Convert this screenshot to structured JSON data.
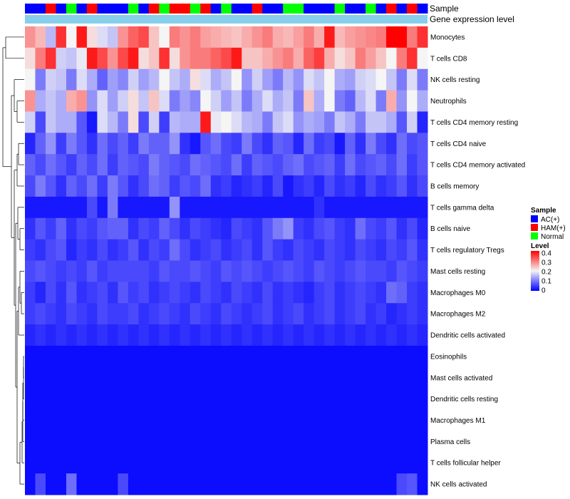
{
  "chart_data": {
    "type": "heatmap",
    "title": "",
    "annotations": {
      "sample_label": "Sample",
      "expression_label": "Gene expression level"
    },
    "sample_groups": [
      "AC(+)",
      "AC(+)",
      "HAM(+)",
      "AC(+)",
      "Normal",
      "AC(+)",
      "HAM(+)",
      "AC(+)",
      "AC(+)",
      "AC(+)",
      "Normal",
      "AC(+)",
      "HAM(+)",
      "Normal",
      "HAM(+)",
      "HAM(+)",
      "Normal",
      "HAM(+)",
      "AC(+)",
      "Normal",
      "AC(+)",
      "AC(+)",
      "HAM(+)",
      "AC(+)",
      "AC(+)",
      "Normal",
      "Normal",
      "AC(+)",
      "AC(+)",
      "AC(+)",
      "Normal",
      "AC(+)",
      "AC(+)",
      "Normal",
      "AC(+)",
      "HAM(+)",
      "AC(+)",
      "HAM(+)",
      "AC(+)"
    ],
    "rows": [
      "Monocytes",
      "T cells CD8",
      "NK cells resting",
      "Neutrophils",
      "T cells CD4 memory resting",
      "T cells CD4 naive",
      "T cells CD4 memory activated",
      "B cells memory",
      "T cells gamma delta",
      "B cells naive",
      "T cells regulatory  Tregs",
      "Mast cells resting",
      "Macrophages M0",
      "Macrophages M2",
      "Dendritic cells activated",
      "Eosinophils",
      "Mast cells activated",
      "Dendritic cells resting",
      "Macrophages M1",
      "Plasma cells",
      "T cells follicular helper",
      "NK cells activated"
    ],
    "values": [
      [
        0.28,
        0.25,
        0.15,
        0.36,
        0.2,
        0.38,
        0.22,
        0.18,
        0.16,
        0.28,
        0.32,
        0.34,
        0.24,
        0.2,
        0.3,
        0.28,
        0.3,
        0.27,
        0.26,
        0.25,
        0.24,
        0.26,
        0.28,
        0.3,
        0.26,
        0.25,
        0.27,
        0.3,
        0.26,
        0.38,
        0.25,
        0.27,
        0.28,
        0.29,
        0.3,
        0.4,
        0.4,
        0.3,
        0.36
      ],
      [
        0.22,
        0.3,
        0.36,
        0.17,
        0.16,
        0.19,
        0.38,
        0.34,
        0.28,
        0.34,
        0.38,
        0.22,
        0.24,
        0.36,
        0.22,
        0.28,
        0.3,
        0.3,
        0.32,
        0.34,
        0.38,
        0.24,
        0.24,
        0.26,
        0.28,
        0.3,
        0.26,
        0.32,
        0.35,
        0.26,
        0.22,
        0.24,
        0.3,
        0.27,
        0.24,
        0.2,
        0.3,
        0.36,
        0.2
      ],
      [
        0.2,
        0.1,
        0.17,
        0.16,
        0.1,
        0.18,
        0.14,
        0.08,
        0.13,
        0.11,
        0.17,
        0.13,
        0.15,
        0.2,
        0.16,
        0.14,
        0.22,
        0.18,
        0.14,
        0.16,
        0.2,
        0.12,
        0.17,
        0.13,
        0.1,
        0.15,
        0.12,
        0.18,
        0.16,
        0.2,
        0.14,
        0.13,
        0.17,
        0.18,
        0.2,
        0.16,
        0.1,
        0.18,
        0.1
      ],
      [
        0.28,
        0.14,
        0.16,
        0.14,
        0.26,
        0.28,
        0.12,
        0.18,
        0.13,
        0.17,
        0.22,
        0.16,
        0.24,
        0.18,
        0.1,
        0.13,
        0.11,
        0.2,
        0.17,
        0.13,
        0.16,
        0.1,
        0.14,
        0.18,
        0.14,
        0.16,
        0.1,
        0.24,
        0.14,
        0.2,
        0.1,
        0.08,
        0.15,
        0.18,
        0.1,
        0.26,
        0.12,
        0.2,
        0.14
      ],
      [
        0.17,
        0.06,
        0.16,
        0.14,
        0.14,
        0.07,
        0.02,
        0.18,
        0.15,
        0.1,
        0.22,
        0.06,
        0.17,
        0.05,
        0.15,
        0.14,
        0.14,
        0.38,
        0.19,
        0.2,
        0.18,
        0.15,
        0.14,
        0.1,
        0.16,
        0.18,
        0.12,
        0.14,
        0.13,
        0.1,
        0.16,
        0.14,
        0.1,
        0.16,
        0.16,
        0.14,
        0.07,
        0.17,
        0.03
      ],
      [
        0.03,
        0.08,
        0.12,
        0.05,
        0.1,
        0.07,
        0.04,
        0.09,
        0.06,
        0.08,
        0.05,
        0.1,
        0.08,
        0.08,
        0.12,
        0.04,
        0.02,
        0.07,
        0.09,
        0.06,
        0.05,
        0.1,
        0.06,
        0.04,
        0.08,
        0.07,
        0.03,
        0.09,
        0.05,
        0.06,
        0.02,
        0.08,
        0.04,
        0.1,
        0.06,
        0.04,
        0.09,
        0.06,
        0.07
      ],
      [
        0.08,
        0.06,
        0.09,
        0.07,
        0.05,
        0.08,
        0.06,
        0.09,
        0.05,
        0.08,
        0.07,
        0.06,
        0.1,
        0.08,
        0.07,
        0.06,
        0.09,
        0.08,
        0.07,
        0.06,
        0.09,
        0.05,
        0.08,
        0.07,
        0.06,
        0.08,
        0.09,
        0.06,
        0.07,
        0.08,
        0.05,
        0.09,
        0.06,
        0.07,
        0.08,
        0.06,
        0.09,
        0.05,
        0.07
      ],
      [
        0.06,
        0.1,
        0.07,
        0.04,
        0.08,
        0.06,
        0.09,
        0.05,
        0.1,
        0.07,
        0.04,
        0.06,
        0.09,
        0.08,
        0.05,
        0.07,
        0.06,
        0.09,
        0.04,
        0.05,
        0.03,
        0.04,
        0.05,
        0.03,
        0.06,
        0.02,
        0.04,
        0.05,
        0.03,
        0.06,
        0.04,
        0.05,
        0.03,
        0.06,
        0.04,
        0.05,
        0.07,
        0.04,
        0.06
      ],
      [
        0.02,
        0.02,
        0.02,
        0.02,
        0.02,
        0.02,
        0.06,
        0.02,
        0.1,
        0.02,
        0.02,
        0.02,
        0.02,
        0.02,
        0.12,
        0.02,
        0.02,
        0.02,
        0.02,
        0.02,
        0.02,
        0.02,
        0.02,
        0.02,
        0.02,
        0.02,
        0.02,
        0.02,
        0.04,
        0.02,
        0.02,
        0.02,
        0.02,
        0.02,
        0.02,
        0.02,
        0.02,
        0.02,
        0.02
      ],
      [
        0.04,
        0.07,
        0.05,
        0.08,
        0.04,
        0.06,
        0.05,
        0.07,
        0.08,
        0.08,
        0.04,
        0.06,
        0.05,
        0.08,
        0.06,
        0.04,
        0.06,
        0.05,
        0.04,
        0.03,
        0.06,
        0.05,
        0.04,
        0.07,
        0.1,
        0.12,
        0.05,
        0.04,
        0.06,
        0.07,
        0.05,
        0.04,
        0.09,
        0.06,
        0.05,
        0.07,
        0.04,
        0.06,
        0.03
      ],
      [
        0.05,
        0.04,
        0.06,
        0.07,
        0.03,
        0.05,
        0.04,
        0.06,
        0.04,
        0.05,
        0.07,
        0.04,
        0.06,
        0.05,
        0.09,
        0.06,
        0.04,
        0.05,
        0.06,
        0.04,
        0.05,
        0.06,
        0.04,
        0.07,
        0.05,
        0.04,
        0.06,
        0.05,
        0.04,
        0.06,
        0.05,
        0.04,
        0.06,
        0.05,
        0.04,
        0.06,
        0.05,
        0.07,
        0.04
      ],
      [
        0.06,
        0.07,
        0.06,
        0.05,
        0.06,
        0.05,
        0.07,
        0.05,
        0.06,
        0.06,
        0.06,
        0.06,
        0.05,
        0.07,
        0.06,
        0.06,
        0.07,
        0.06,
        0.05,
        0.07,
        0.06,
        0.07,
        0.06,
        0.05,
        0.06,
        0.07,
        0.06,
        0.05,
        0.07,
        0.06,
        0.05,
        0.06,
        0.07,
        0.06,
        0.06,
        0.05,
        0.07,
        0.06,
        0.05
      ],
      [
        0.05,
        0.03,
        0.06,
        0.04,
        0.07,
        0.04,
        0.05,
        0.06,
        0.04,
        0.07,
        0.05,
        0.06,
        0.04,
        0.05,
        0.06,
        0.05,
        0.04,
        0.06,
        0.05,
        0.04,
        0.06,
        0.05,
        0.04,
        0.06,
        0.04,
        0.05,
        0.04,
        0.03,
        0.05,
        0.06,
        0.04,
        0.05,
        0.06,
        0.05,
        0.04,
        0.09,
        0.08,
        0.05,
        0.04
      ],
      [
        0.05,
        0.06,
        0.05,
        0.04,
        0.06,
        0.05,
        0.04,
        0.06,
        0.05,
        0.05,
        0.06,
        0.04,
        0.05,
        0.06,
        0.05,
        0.04,
        0.06,
        0.05,
        0.04,
        0.06,
        0.05,
        0.04,
        0.05,
        0.06,
        0.04,
        0.05,
        0.06,
        0.04,
        0.05,
        0.06,
        0.04,
        0.05,
        0.06,
        0.04,
        0.05,
        0.03,
        0.04,
        0.05,
        0.04
      ],
      [
        0.03,
        0.04,
        0.03,
        0.04,
        0.03,
        0.04,
        0.03,
        0.04,
        0.03,
        0.04,
        0.03,
        0.04,
        0.03,
        0.04,
        0.03,
        0.04,
        0.03,
        0.04,
        0.03,
        0.04,
        0.03,
        0.04,
        0.03,
        0.04,
        0.03,
        0.04,
        0.03,
        0.04,
        0.03,
        0.04,
        0.03,
        0.04,
        0.03,
        0.04,
        0.03,
        0.04,
        0.03,
        0.04,
        0.03
      ],
      [
        0.01,
        0.01,
        0.01,
        0.01,
        0.01,
        0.01,
        0.01,
        0.01,
        0.01,
        0.01,
        0.01,
        0.01,
        0.01,
        0.01,
        0.01,
        0.01,
        0.01,
        0.01,
        0.01,
        0.01,
        0.01,
        0.01,
        0.01,
        0.01,
        0.01,
        0.01,
        0.01,
        0.01,
        0.01,
        0.01,
        0.01,
        0.01,
        0.01,
        0.01,
        0.01,
        0.01,
        0.01,
        0.01,
        0.01
      ],
      [
        0.01,
        0.01,
        0.01,
        0.01,
        0.01,
        0.01,
        0.01,
        0.01,
        0.01,
        0.01,
        0.01,
        0.01,
        0.01,
        0.01,
        0.01,
        0.01,
        0.01,
        0.01,
        0.01,
        0.01,
        0.01,
        0.01,
        0.01,
        0.01,
        0.01,
        0.01,
        0.01,
        0.01,
        0.01,
        0.01,
        0.01,
        0.01,
        0.01,
        0.01,
        0.01,
        0.01,
        0.01,
        0.01,
        0.01
      ],
      [
        0.01,
        0.01,
        0.01,
        0.01,
        0.01,
        0.01,
        0.01,
        0.01,
        0.01,
        0.01,
        0.01,
        0.01,
        0.01,
        0.01,
        0.01,
        0.01,
        0.01,
        0.01,
        0.01,
        0.01,
        0.01,
        0.01,
        0.01,
        0.01,
        0.01,
        0.01,
        0.01,
        0.01,
        0.01,
        0.01,
        0.01,
        0.01,
        0.01,
        0.01,
        0.01,
        0.01,
        0.01,
        0.01,
        0.01
      ],
      [
        0.01,
        0.01,
        0.01,
        0.01,
        0.01,
        0.01,
        0.01,
        0.01,
        0.01,
        0.01,
        0.01,
        0.01,
        0.01,
        0.01,
        0.01,
        0.01,
        0.01,
        0.01,
        0.01,
        0.01,
        0.01,
        0.01,
        0.01,
        0.01,
        0.01,
        0.01,
        0.01,
        0.01,
        0.01,
        0.01,
        0.01,
        0.01,
        0.01,
        0.01,
        0.01,
        0.01,
        0.01,
        0.01,
        0.01
      ],
      [
        0.01,
        0.01,
        0.01,
        0.01,
        0.01,
        0.01,
        0.01,
        0.01,
        0.01,
        0.01,
        0.01,
        0.01,
        0.01,
        0.01,
        0.01,
        0.01,
        0.01,
        0.01,
        0.01,
        0.01,
        0.01,
        0.01,
        0.01,
        0.01,
        0.01,
        0.01,
        0.01,
        0.01,
        0.01,
        0.01,
        0.01,
        0.01,
        0.01,
        0.01,
        0.01,
        0.01,
        0.01,
        0.01,
        0.01
      ],
      [
        0.01,
        0.01,
        0.01,
        0.01,
        0.01,
        0.01,
        0.01,
        0.01,
        0.01,
        0.01,
        0.01,
        0.01,
        0.01,
        0.01,
        0.01,
        0.01,
        0.01,
        0.01,
        0.01,
        0.01,
        0.01,
        0.01,
        0.01,
        0.01,
        0.01,
        0.01,
        0.01,
        0.01,
        0.01,
        0.01,
        0.01,
        0.01,
        0.01,
        0.01,
        0.01,
        0.01,
        0.01,
        0.01,
        0.01
      ],
      [
        0.01,
        0.06,
        0.01,
        0.01,
        0.09,
        0.01,
        0.01,
        0.01,
        0.01,
        0.06,
        0.01,
        0.01,
        0.01,
        0.01,
        0.01,
        0.01,
        0.01,
        0.01,
        0.01,
        0.01,
        0.01,
        0.01,
        0.01,
        0.01,
        0.01,
        0.01,
        0.01,
        0.01,
        0.01,
        0.01,
        0.01,
        0.01,
        0.01,
        0.01,
        0.01,
        0.01,
        0.06,
        0.07,
        0.01
      ]
    ],
    "color_scale": {
      "min": 0,
      "mid": 0.2,
      "max": 0.4,
      "low_color": "#0000ff",
      "mid_color": "#f5f5f5",
      "high_color": "#ff0000"
    },
    "legends": {
      "sample": {
        "title": "Sample",
        "items": [
          {
            "label": "AC(+)",
            "color": "#0000ff"
          },
          {
            "label": "HAM(+)",
            "color": "#ff0000"
          },
          {
            "label": "Normal",
            "color": "#00ff00"
          }
        ]
      },
      "level": {
        "title": "Level",
        "ticks": [
          "0.4",
          "0.3",
          "0.2",
          "0.1",
          "0"
        ]
      }
    },
    "expression_bar_color": "#87ceeb"
  }
}
